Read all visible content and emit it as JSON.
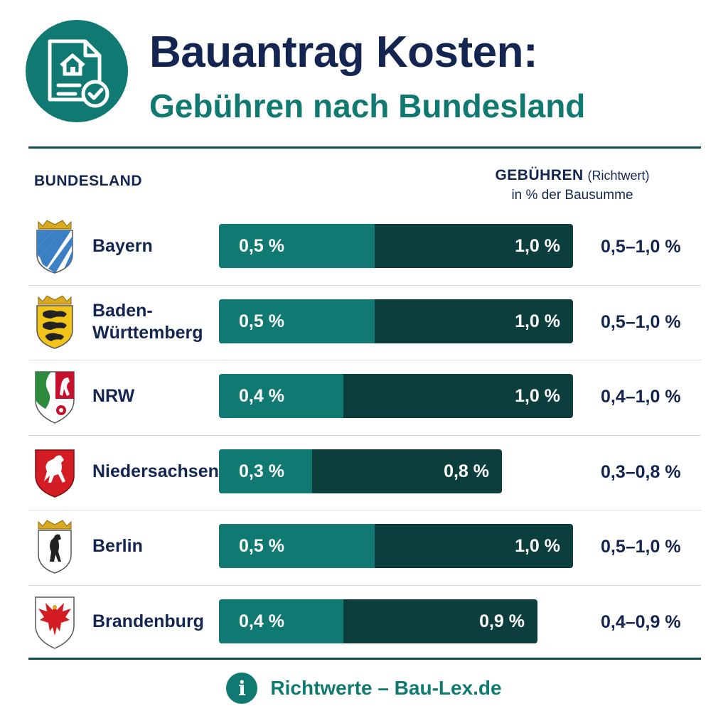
{
  "header": {
    "title": "Bauantrag Kosten:",
    "subtitle": "Gebühren nach Bundesland",
    "logo_icon": "house-document-check-icon"
  },
  "columns": {
    "left": "BUNDESLAND",
    "right_main": "GEBÜHREN",
    "right_note": "(Richtwert)",
    "right_unit": "in % der Bausumme"
  },
  "colors": {
    "min_segment": "#107a72",
    "max_segment": "#0b3e3c",
    "title": "#132550",
    "accent": "#117a70"
  },
  "chart_data": {
    "type": "bar",
    "title": "Bauantrag Kosten:",
    "subtitle": "Gebühren nach Bundesland",
    "categories": [
      "Bayern",
      "Baden-\nWürttemberg",
      "NRW",
      "Niedersachsen",
      "Berlin",
      "Brandenburg"
    ],
    "series": [
      {
        "values": [
          0.5,
          0.5,
          0.4,
          0.3,
          0.5,
          0.4
        ],
        "labels": [
          "0,5 %",
          "0,5 %",
          "0,4 %",
          "0,3 %",
          "0,5 %",
          "0,4 %"
        ]
      },
      {
        "values": [
          1.0,
          1.0,
          1.0,
          0.8,
          1.0,
          0.9
        ],
        "labels": [
          "1,0 %",
          "1,0 %",
          "1,0 %",
          "0,8 %",
          "1,0 %",
          "0,9 %"
        ]
      }
    ],
    "ranges": [
      "0,5–1,0 %",
      "0,5–1,0 %",
      "0,4–1,0 %",
      "0,3–0,8 %",
      "0,5–1,0 %",
      "0,4–0,9 %"
    ],
    "crests": [
      "bavaria-crest-icon",
      "baden-wuerttemberg-crest-icon",
      "nrw-crest-icon",
      "niedersachsen-crest-icon",
      "berlin-crest-icon",
      "brandenburg-crest-icon"
    ],
    "xlim": [
      0,
      1.1
    ],
    "xlabel": "in % der Bausumme",
    "ylabel": "BUNDESLAND",
    "grid": false
  },
  "footer": {
    "icon": "info-icon",
    "icon_glyph": "i",
    "text": "Richtwerte – Bau-Lex.de"
  }
}
